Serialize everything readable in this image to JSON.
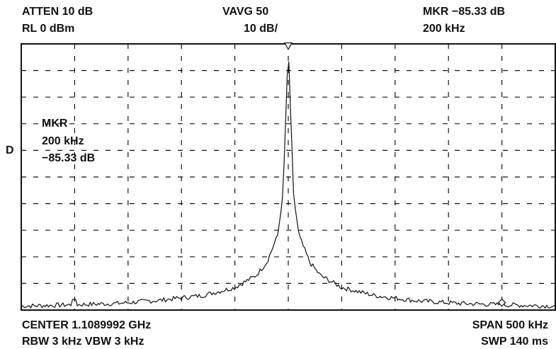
{
  "header": {
    "atten": "ATTEN 10 dB",
    "ref_level": "RL  0 dBm",
    "vavg": "VAVG  50",
    "scale": "10 dB/",
    "marker_readout": "MKR  −85.33 dB",
    "marker_freq": "200 kHz"
  },
  "side_marker": {
    "title": "MKR",
    "freq": "200 kHz",
    "level": "−85.33 dB"
  },
  "detector": "D",
  "footer": {
    "center": "CENTER  1.1089992 GHz",
    "bandwidths": "RBW  3 kHz   VBW  3 kHz",
    "span": "SPAN 500 kHz",
    "sweep": "SWP  140 ms"
  },
  "chart_data": {
    "type": "line",
    "xlabel": "",
    "ylabel": "",
    "x_unit": "kHz offset from center",
    "y_unit": "dBm",
    "xlim": [
      -250,
      250
    ],
    "ylim": [
      -100,
      0
    ],
    "grid": true,
    "grid_style": "dashed",
    "line_color": "#111111",
    "series": [
      {
        "x": [
          -250,
          -200,
          -160,
          -120,
          -80,
          -50,
          -30,
          -20,
          -10,
          -5,
          0,
          5,
          10,
          20,
          30,
          50,
          80,
          120,
          160,
          200,
          250
        ],
        "y": [
          -98.5,
          -98.0,
          -97.5,
          -96.3,
          -94.5,
          -91.5,
          -87.0,
          -82.0,
          -72.0,
          -57.0,
          -1.5,
          -57.0,
          -72.0,
          -82.0,
          -87.0,
          -91.5,
          -94.5,
          -96.5,
          -97.5,
          -98.0,
          -98.5
        ]
      }
    ],
    "markers": [
      {
        "x": 0,
        "y": -1.5,
        "shape": "triangle-down"
      },
      {
        "x": 200,
        "y": -97.2,
        "shape": "diamond"
      }
    ],
    "spurs": [
      {
        "x": -200,
        "y": -96.0
      },
      {
        "x": 200,
        "y": -96.6
      }
    ]
  }
}
